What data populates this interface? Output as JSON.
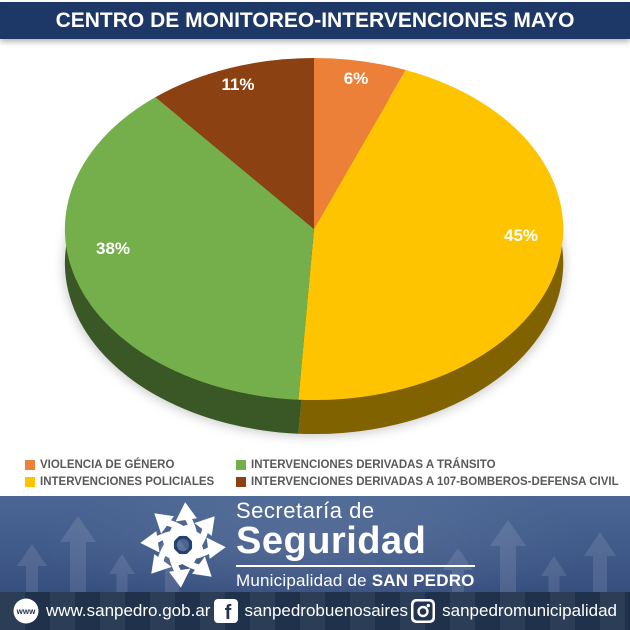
{
  "header": {
    "title": "CENTRO DE MONITOREO-INTERVENCIONES MAYO"
  },
  "chart_data": {
    "type": "pie",
    "style": "3d",
    "title": "CENTRO DE MONITOREO-INTERVENCIONES MAYO",
    "start_angle_deg": 0,
    "direction": "clockwise",
    "legend_position": "bottom",
    "data_labels_unit": "%",
    "slices": [
      {
        "label": "VIOLENCIA DE GÉNERO",
        "value": 6,
        "pct_label": "6%",
        "color": "#EC8038"
      },
      {
        "label": "INTERVENCIONES POLICIALES",
        "value": 45,
        "pct_label": "45%",
        "color": "#FFC400"
      },
      {
        "label": "INTERVENCIONES DERIVADAS A TRÁNSITO",
        "value": 38,
        "pct_label": "38%",
        "color": "#74AF4B"
      },
      {
        "label": "INTERVENCIONES DERIVADAS A 107-BOMBEROS-DEFENSA CIVIL",
        "value": 11,
        "pct_label": "11%",
        "color": "#8C4112"
      }
    ],
    "legend_display_order": [
      0,
      2,
      1,
      3
    ]
  },
  "footer": {
    "brand": {
      "line1": "Secretaría de",
      "line2": "Seguridad",
      "line3_prefix": "Municipalidad de ",
      "line3_bold": "SAN PEDRO"
    },
    "social": {
      "website": "www.sanpedro.gob.ar",
      "facebook": "sanpedrobuenosaires",
      "instagram": "sanpedromunicipalidad"
    },
    "icon_glyphs": {
      "website": "www",
      "facebook": "f"
    }
  },
  "colors": {
    "header_bg": "#1D3767",
    "footer_top": "#4B6694",
    "footer_mid": "#3C5585",
    "footer_bottom": "#2E4474",
    "social_bar_bg": "#22344F",
    "legend_text": "#595959",
    "pie_label_text": "#FFFFFF"
  }
}
